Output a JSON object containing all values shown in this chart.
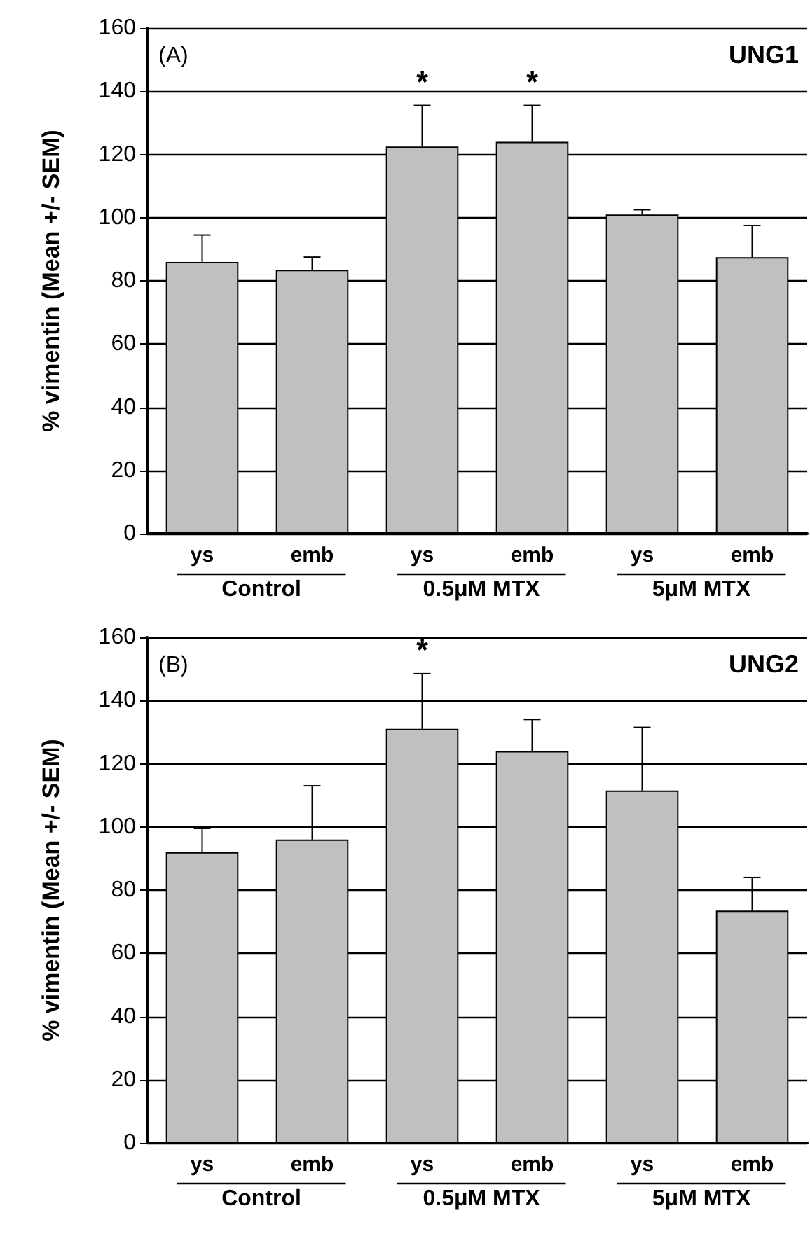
{
  "chart_data": [
    {
      "type": "bar",
      "title": "UNG1",
      "subtitle": "(A)",
      "ylabel": "% vimentin (Mean +/- SEM)",
      "categories": [
        "ys",
        "emb",
        "ys",
        "emb",
        "ys",
        "emb"
      ],
      "values": [
        86,
        83.5,
        122.5,
        124,
        101,
        87.5
      ],
      "color": "#c0c0c0",
      "errors": [
        [
          86,
          94.5
        ],
        [
          83.5,
          87.5
        ],
        [
          122.5,
          135.5
        ],
        [
          124,
          135.5
        ],
        [
          101,
          102.5
        ],
        [
          87.5,
          97.5
        ]
      ],
      "value_labels": [
        null,
        null,
        "*",
        "*",
        null,
        null
      ],
      "ylim": [
        0,
        160
      ],
      "yticks": [
        0,
        20,
        40,
        60,
        80,
        100,
        120,
        140,
        160
      ],
      "grid": "y",
      "annotations": [
        "Control",
        "0.5μM MTX",
        "5μM MTX"
      ]
    },
    {
      "type": "bar",
      "title": "UNG2",
      "subtitle": "(B)",
      "ylabel": "% vimentin (Mean +/- SEM)",
      "categories": [
        "ys",
        "emb",
        "ys",
        "emb",
        "ys",
        "emb"
      ],
      "values": [
        92,
        96,
        131,
        124,
        111.5,
        73.5
      ],
      "color": "#c0c0c0",
      "errors": [
        [
          92,
          99.5
        ],
        [
          96,
          113
        ],
        [
          131,
          148.5
        ],
        [
          124,
          134
        ],
        [
          111.5,
          131.5
        ],
        [
          73.5,
          84
        ]
      ],
      "value_labels": [
        null,
        null,
        "*",
        null,
        null,
        null
      ],
      "ylim": [
        0,
        160
      ],
      "yticks": [
        0,
        20,
        40,
        60,
        80,
        100,
        120,
        140,
        160
      ],
      "grid": "y",
      "annotations": [
        "Control",
        "0.5μM MTX",
        "5μM MTX"
      ]
    }
  ]
}
